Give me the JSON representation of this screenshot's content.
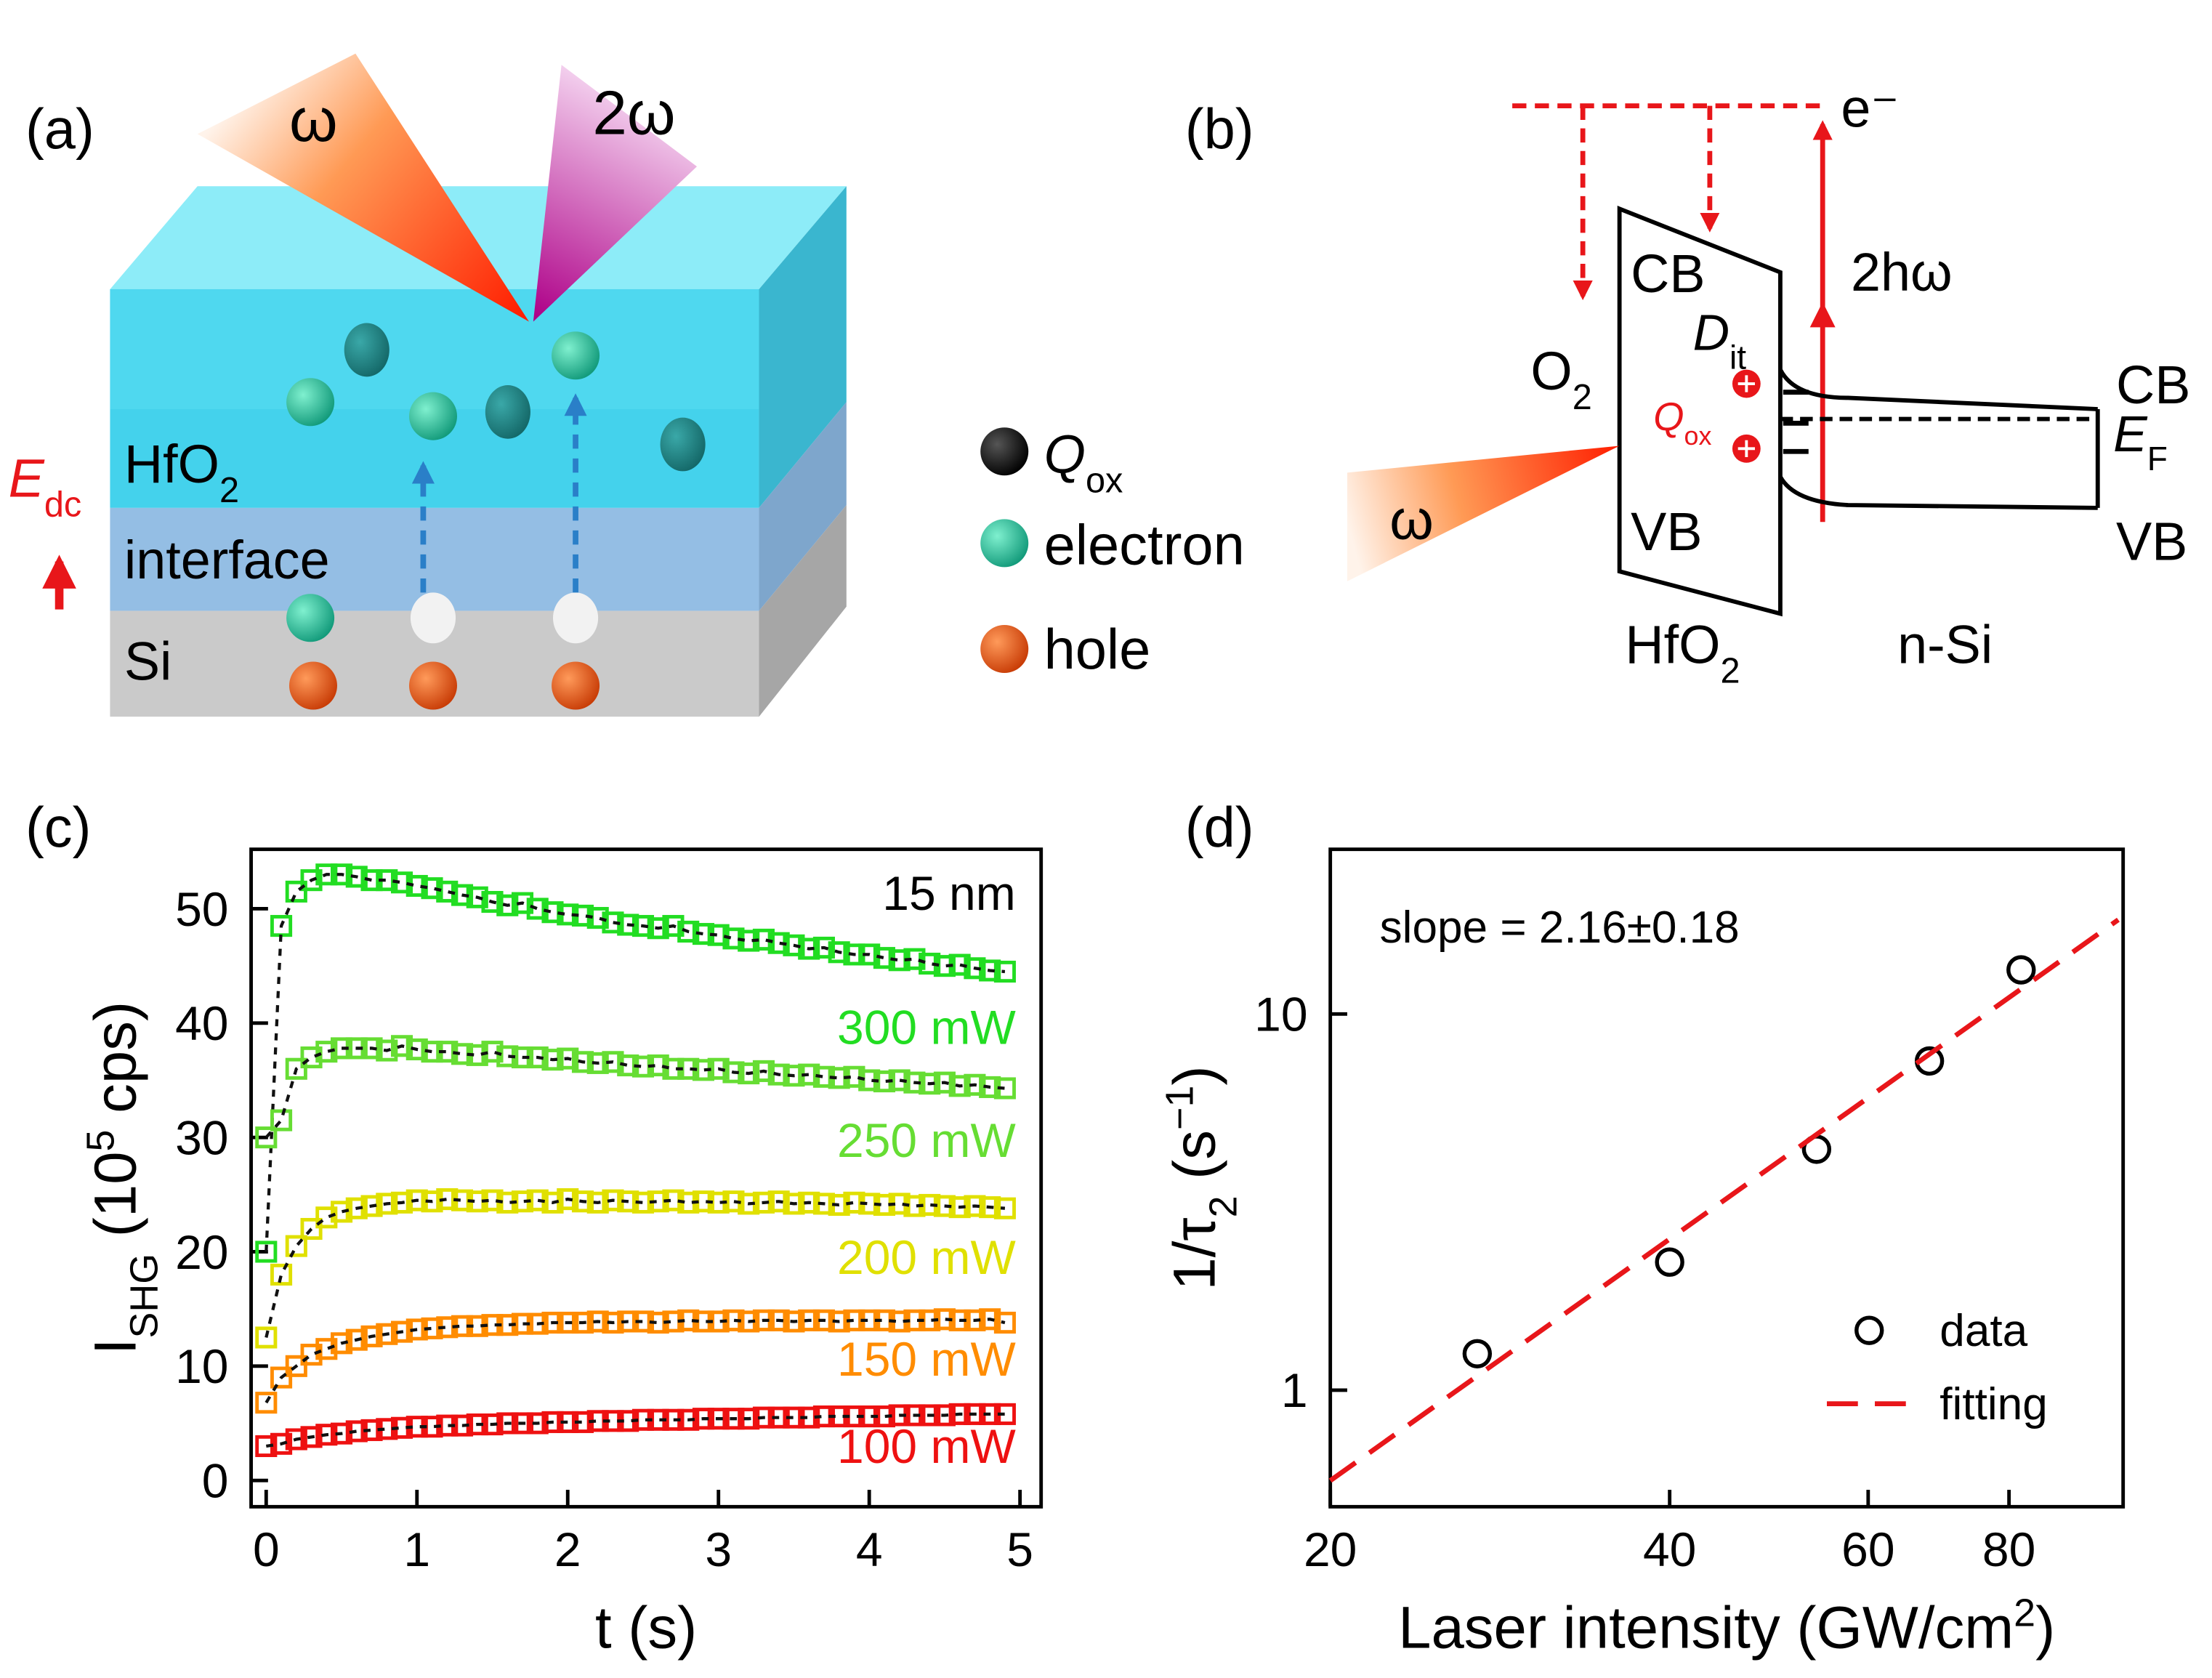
{
  "panels": {
    "a": {
      "label": "(a)",
      "beam_in": "ω",
      "beam_out": "2ω",
      "layer_top": {
        "base": "HfO",
        "sub": "2"
      },
      "layer_mid": "interface",
      "layer_bottom": "Si",
      "field": {
        "base": "E",
        "sub": "dc"
      },
      "legend": [
        {
          "base": "Q",
          "sub": "ox"
        },
        "electron",
        "hole"
      ]
    },
    "b": {
      "label": "(b)",
      "electron": "e⁻",
      "photon_energy": "2hω",
      "oxide_cb": "CB",
      "oxygen": {
        "base": "O",
        "sub": "2"
      },
      "interface_states": {
        "base": "D",
        "sub": "it"
      },
      "oxide_charge": {
        "base": "Q",
        "sub": "ox"
      },
      "fermi": {
        "base": "E",
        "sub": "F"
      },
      "oxide_vb": "VB",
      "beam": "ω",
      "oxide": {
        "base": "HfO",
        "sub": "2"
      },
      "substrate": "n-Si",
      "si_cb": "CB",
      "si_vb": "VB"
    }
  },
  "chart_data": [
    {
      "type": "line",
      "panel_label": "(c)",
      "annotation": "15 nm",
      "xlabel": "t (s)",
      "ylabel": {
        "base": "I",
        "sub": "SHG",
        "mid": " (10",
        "sup": "5",
        "end": " cps)"
      },
      "marker": "square",
      "line_style": "dashed",
      "xlim": [
        -0.1,
        5.14
      ],
      "ylim": [
        -2.3,
        55.2
      ],
      "xticks": [
        0,
        1,
        2,
        3,
        4,
        5
      ],
      "yticks": [
        0,
        10,
        20,
        30,
        40,
        50
      ],
      "x": [
        0,
        0.1,
        0.2,
        0.3,
        0.4,
        0.5,
        0.6,
        0.7,
        0.8,
        0.9,
        1,
        1.1,
        1.2,
        1.3,
        1.4,
        1.5,
        1.6,
        1.7,
        1.8,
        1.9,
        2,
        2.1,
        2.2,
        2.3,
        2.4,
        2.5,
        2.6,
        2.7,
        2.8,
        2.9,
        3,
        3.1,
        3.2,
        3.3,
        3.4,
        3.5,
        3.6,
        3.7,
        3.8,
        3.9,
        4,
        4.1,
        4.2,
        4.3,
        4.4,
        4.5,
        4.6,
        4.7,
        4.8,
        4.9
      ],
      "series": [
        {
          "name": "300 mW",
          "color": "#22dd22",
          "values": [
            20,
            48.5,
            51.5,
            52.5,
            53,
            53,
            52.8,
            52.5,
            52.5,
            52.3,
            52,
            51.8,
            51.5,
            51.2,
            51,
            50.6,
            50.3,
            50.5,
            50,
            49.7,
            49.5,
            49.4,
            49.2,
            48.8,
            48.6,
            48.5,
            48.3,
            48.5,
            48,
            47.8,
            47.7,
            47.4,
            47.2,
            47.3,
            47,
            46.8,
            46.5,
            46.6,
            46.2,
            46,
            46,
            45.7,
            45.5,
            45.6,
            45.2,
            45,
            45.1,
            44.8,
            44.6,
            44.5
          ]
        },
        {
          "name": "250 mW",
          "color": "#66dd33",
          "values": [
            30,
            31.5,
            36,
            37,
            37.5,
            37.8,
            37.8,
            37.8,
            37.6,
            38,
            37.7,
            37.5,
            37.5,
            37.3,
            37.2,
            37.5,
            37.1,
            37,
            37,
            36.8,
            36.9,
            36.6,
            36.5,
            36.6,
            36.3,
            36.2,
            36.3,
            36,
            36,
            35.9,
            36,
            35.7,
            35.6,
            35.8,
            35.5,
            35.4,
            35.5,
            35.3,
            35.2,
            35.3,
            35,
            34.9,
            35,
            34.8,
            34.7,
            34.8,
            34.5,
            34.6,
            34.4,
            34.3
          ]
        },
        {
          "name": "200 mW",
          "color": "#e0e000",
          "values": [
            12.5,
            18,
            20.5,
            22,
            23,
            23.5,
            23.8,
            24,
            24.2,
            24.3,
            24.5,
            24.4,
            24.6,
            24.5,
            24.4,
            24.5,
            24.3,
            24.4,
            24.5,
            24.3,
            24.6,
            24.4,
            24.3,
            24.5,
            24.4,
            24.3,
            24.4,
            24.5,
            24.3,
            24.4,
            24.3,
            24.4,
            24.2,
            24.3,
            24.4,
            24.2,
            24.3,
            24.2,
            24.1,
            24.3,
            24.2,
            24.1,
            24.2,
            24,
            24.1,
            24,
            23.9,
            24,
            23.9,
            23.8
          ]
        },
        {
          "name": "150 mW",
          "color": "#ff8c00",
          "values": [
            6.8,
            9,
            10,
            11,
            11.5,
            12,
            12.3,
            12.6,
            12.8,
            13,
            13.2,
            13.3,
            13.4,
            13.5,
            13.5,
            13.6,
            13.6,
            13.7,
            13.7,
            13.8,
            13.8,
            13.8,
            13.9,
            13.8,
            13.9,
            13.9,
            13.8,
            13.9,
            14,
            13.9,
            13.9,
            14,
            13.9,
            14,
            14,
            13.9,
            14,
            14,
            13.9,
            14,
            14,
            14,
            13.9,
            14,
            14,
            14.1,
            14,
            14,
            14.1,
            13.8
          ]
        },
        {
          "name": "100 mW",
          "color": "#ee1111",
          "values": [
            3,
            3.2,
            3.6,
            3.8,
            4,
            4.1,
            4.3,
            4.4,
            4.5,
            4.6,
            4.7,
            4.7,
            4.8,
            4.8,
            4.9,
            4.9,
            5,
            5,
            5,
            5.1,
            5.1,
            5.1,
            5.2,
            5.2,
            5.2,
            5.3,
            5.3,
            5.3,
            5.3,
            5.4,
            5.4,
            5.4,
            5.4,
            5.5,
            5.5,
            5.5,
            5.5,
            5.6,
            5.6,
            5.6,
            5.6,
            5.6,
            5.7,
            5.7,
            5.7,
            5.7,
            5.8,
            5.8,
            5.8,
            5.8
          ]
        }
      ]
    },
    {
      "type": "scatter",
      "panel_label": "(d)",
      "annotation": "slope = 2.16±0.18",
      "xlabel": {
        "base": "Laser intensity (GW/cm",
        "sup": "2",
        "end": ")"
      },
      "ylabel": {
        "base": "1/τ",
        "sub": "2",
        "mid": " (s",
        "sup": "−1",
        "end": ")"
      },
      "xscale": "log",
      "yscale": "log",
      "legend": "lower right",
      "xlim": [
        20,
        101
      ],
      "ylim": [
        0.49,
        27.4
      ],
      "xticks": [
        20,
        40,
        60,
        80
      ],
      "yticks": [
        1,
        10
      ],
      "series": [
        {
          "name": "data",
          "color": "#000000",
          "marker": "circle",
          "x": [
            27,
            40,
            54,
            68,
            82
          ],
          "values": [
            1.25,
            2.19,
            4.37,
            7.5,
            13.1
          ]
        },
        {
          "name": "fitting",
          "color": "#e8161a",
          "line_style": "dashed",
          "x": [
            20,
            100
          ],
          "values": [
            0.575,
            17.8
          ]
        }
      ]
    }
  ]
}
